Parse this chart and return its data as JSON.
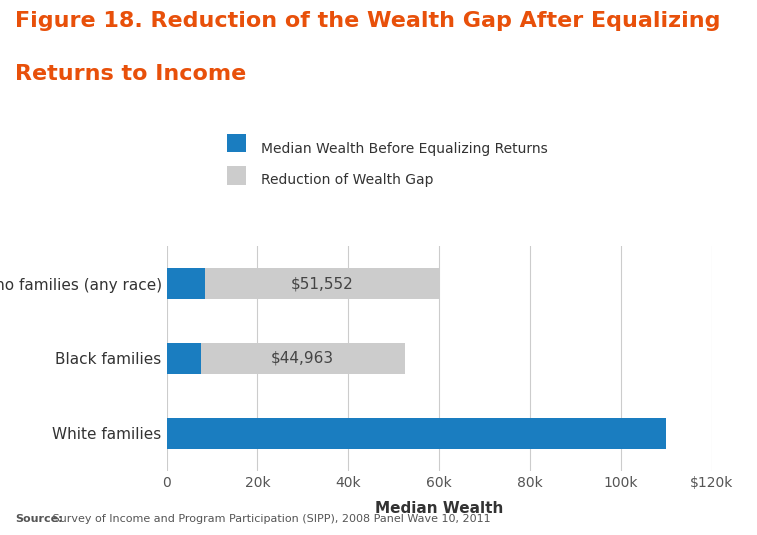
{
  "title_line1": "Figure 18. Reduction of the Wealth Gap After Equalizing",
  "title_line2": "Returns to Income",
  "title_color": "#E8500A",
  "title_fontsize": 16,
  "categories": [
    "White families",
    "Black families",
    "Latino families (any race)"
  ],
  "base_values": [
    110000,
    7500,
    8500
  ],
  "reduction_values": [
    0,
    44963,
    51552
  ],
  "reduction_labels": [
    "",
    "$44,963",
    "$51,552"
  ],
  "base_color": "#1A7DC0",
  "reduction_color": "#CCCCCC",
  "xlabel": "Median Wealth",
  "xlabel_fontsize": 11,
  "xlim": [
    0,
    120000
  ],
  "xtick_labels": [
    "0",
    "20k",
    "40k",
    "60k",
    "80k",
    "100k",
    "$120k"
  ],
  "xtick_values": [
    0,
    20000,
    40000,
    60000,
    80000,
    100000,
    120000
  ],
  "legend_labels": [
    "Median Wealth Before Equalizing Returns",
    "Reduction of Wealth Gap"
  ],
  "source_bold": "Source:",
  "source_text": " Survey of Income and Program Participation (SIPP), 2008 Panel Wave 10, 2011",
  "background_color": "#FFFFFF",
  "bar_height": 0.42,
  "gridcolor": "#CCCCCC",
  "annotation_fontsize": 11,
  "yticklabel_fontsize": 11,
  "xticklabel_fontsize": 10
}
